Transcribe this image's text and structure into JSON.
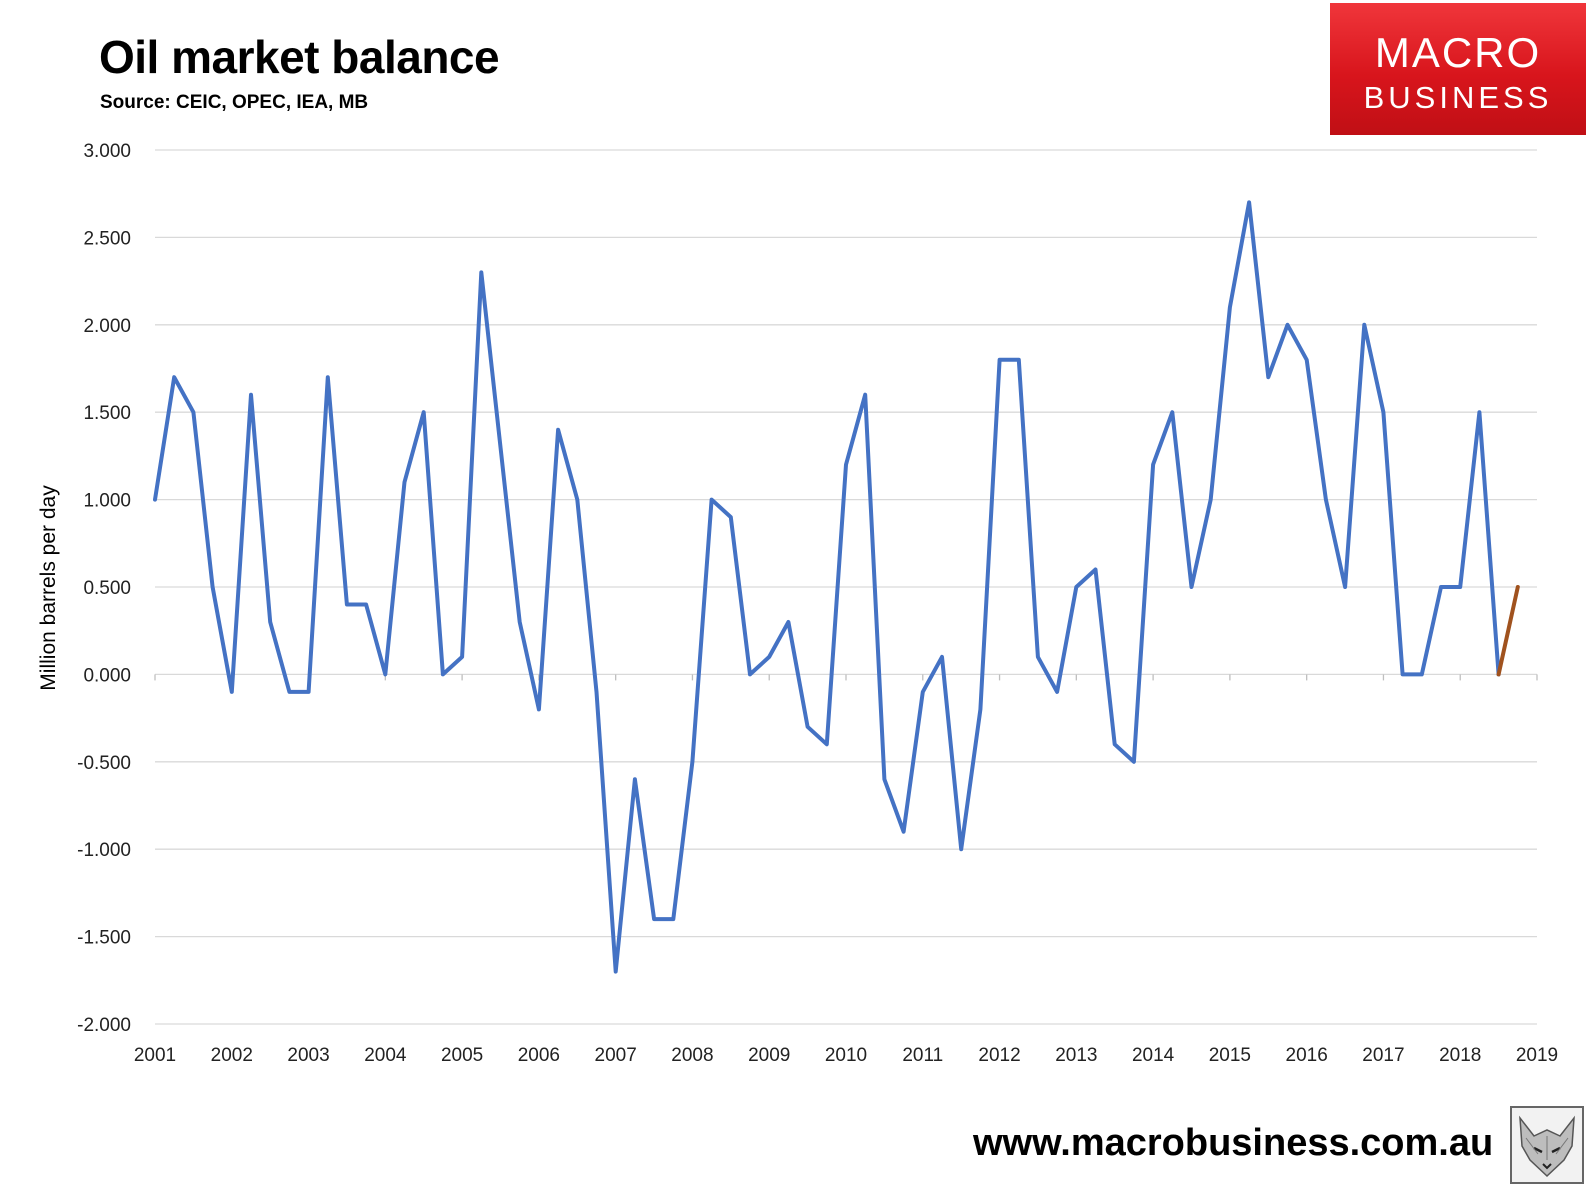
{
  "header": {
    "title": "Oil market balance",
    "subtitle": "Source: CEIC, OPEC, IEA, MB"
  },
  "logo": {
    "line1": "MACRO",
    "line2": "BUSINESS"
  },
  "footer": {
    "url": "www.macrobusiness.com.au"
  },
  "chart_data": {
    "type": "line",
    "title": "Oil market balance",
    "ylabel": "Million barrels per day",
    "xlabel": "",
    "ylim": [
      -2,
      3
    ],
    "xlim": [
      2001,
      2019
    ],
    "grid": "horizontal",
    "yticks": [
      "3.000",
      "2.500",
      "2.000",
      "1.500",
      "1.000",
      "0.500",
      "0.000",
      "-0.500",
      "-1.000",
      "-1.500",
      "-2.000"
    ],
    "xticks": [
      "2001",
      "2002",
      "2003",
      "2004",
      "2005",
      "2006",
      "2007",
      "2008",
      "2009",
      "2010",
      "2011",
      "2012",
      "2013",
      "2014",
      "2015",
      "2016",
      "2017",
      "2018",
      "2019"
    ],
    "x_start": 2001,
    "x_step": 0.25,
    "series": [
      {
        "color": "#4472c4",
        "values": [
          1.0,
          1.7,
          1.5,
          0.5,
          -0.1,
          1.6,
          0.3,
          -0.1,
          -0.1,
          1.7,
          0.4,
          0.4,
          0.0,
          1.1,
          1.5,
          0.0,
          0.1,
          2.3,
          1.3,
          0.3,
          -0.2,
          1.4,
          1.0,
          -0.1,
          -1.7,
          -0.6,
          -1.4,
          -1.4,
          -0.5,
          1.0,
          0.9,
          0.0,
          0.1,
          0.3,
          -0.3,
          -0.4,
          1.2,
          1.6,
          -0.6,
          -0.9,
          -0.1,
          0.1,
          -1.0,
          -0.2,
          1.8,
          1.8,
          0.1,
          -0.1,
          0.5,
          0.6,
          -0.4,
          -0.5,
          1.2,
          1.5,
          0.5,
          1.0,
          2.1,
          2.7,
          1.7,
          2.0,
          1.8,
          1.0,
          0.5,
          2.0,
          1.5,
          0.0,
          0.0,
          0.5,
          0.5,
          1.5,
          0.0
        ]
      },
      {
        "color": "#a0521e",
        "x_start": 2018.5,
        "values": [
          0.0,
          0.5
        ]
      }
    ]
  }
}
